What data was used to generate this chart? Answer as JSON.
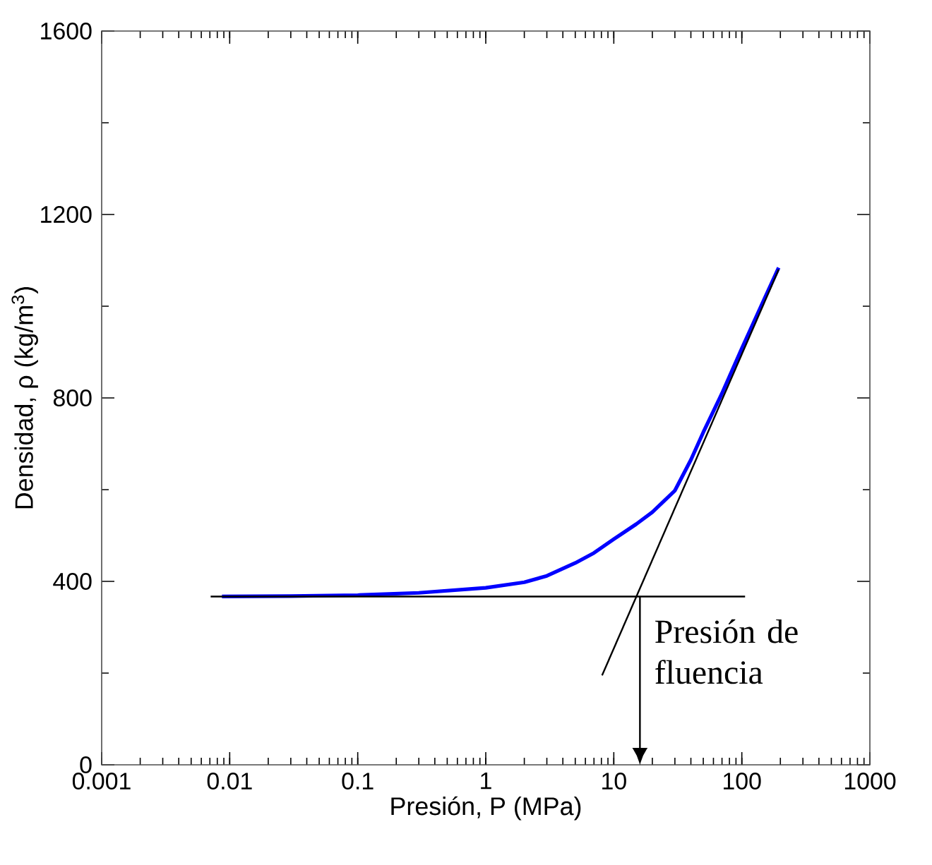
{
  "chart_data": {
    "type": "line",
    "xlabel": "Presión, P (MPa)",
    "ylabel": "Densidad, ρ (kg/m$^{3}$)",
    "log": "x",
    "xlim": [
      0.001,
      1000
    ],
    "xticks": [
      0.001,
      0.01,
      0.1,
      1,
      10,
      100,
      1000
    ],
    "ylim": [
      0,
      1600
    ],
    "yticks": [
      0,
      400,
      800,
      1200,
      1600
    ],
    "series": [
      {
        "color": "#0000ff",
        "x": [
          0.0087,
          0.03,
          0.1,
          0.3,
          1,
          2,
          3,
          5,
          7,
          10,
          15,
          20,
          30,
          40,
          50,
          70,
          100,
          150,
          194
        ],
        "values": [
          367,
          368,
          370,
          375,
          386,
          398,
          412,
          440,
          462,
          492,
          525,
          551,
          598,
          665,
          725,
          810,
          908,
          1016,
          1084
        ]
      },
      {
        "color": "#000000",
        "x": [
          0.0071,
          106
        ],
        "values": [
          367,
          367
        ]
      },
      {
        "color": "#000000",
        "x": [
          8.1,
          194
        ],
        "values": [
          195,
          1080
        ]
      }
    ],
    "annotations": [
      {
        "text": "Presión de fluencia",
        "x": 16,
        "y": 367
      }
    ]
  }
}
